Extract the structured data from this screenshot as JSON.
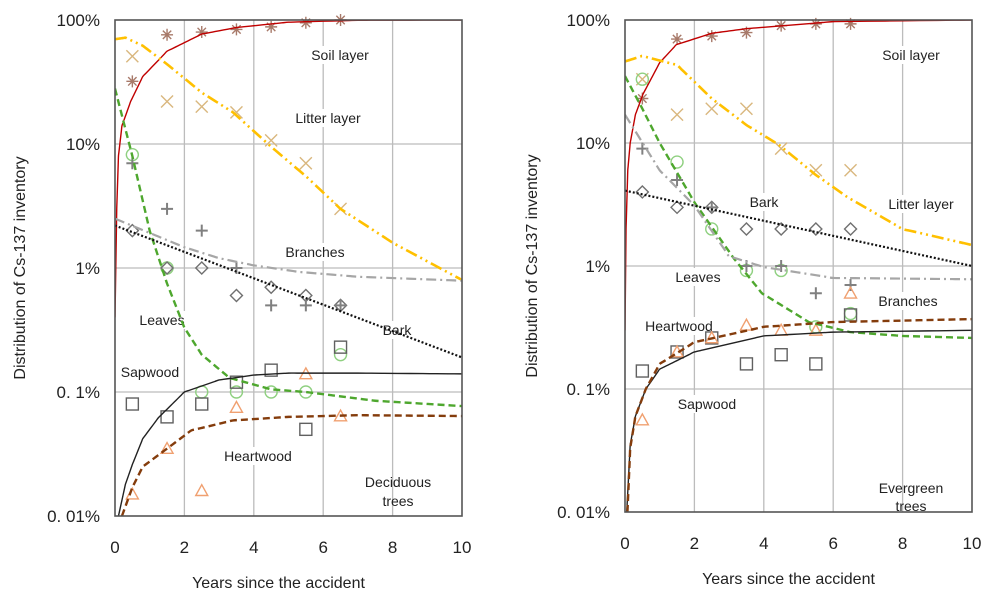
{
  "chart_data": [
    {
      "type": "scatter",
      "panel_label": [
        "Deciduous",
        "trees"
      ],
      "xlabel": "Years since the accident",
      "ylabel": "Distribution of Cs-137 inventory",
      "xlim": [
        0,
        10
      ],
      "ylim": [
        0.01,
        100
      ],
      "yscale": "log",
      "grid": true,
      "x_ticks": [
        "0",
        "2",
        "4",
        "6",
        "8",
        "10"
      ],
      "y_ticks": [
        "100%",
        "10%",
        "1%",
        "0. 1%",
        "0. 01%"
      ],
      "series": [
        {
          "name": "Soil layer",
          "marker": "asterisk",
          "marker_color": "#a87a6a",
          "line_color": "#c00000",
          "line_style": "solid",
          "points": [
            [
              0.5,
              32
            ],
            [
              1.5,
              76
            ],
            [
              2.5,
              80
            ],
            [
              3.5,
              84
            ],
            [
              4.5,
              88
            ],
            [
              5.5,
              95
            ],
            [
              6.5,
              100
            ]
          ],
          "fit": [
            [
              0,
              0.4
            ],
            [
              0.05,
              3
            ],
            [
              0.1,
              8
            ],
            [
              0.2,
              14
            ],
            [
              0.45,
              22
            ],
            [
              0.8,
              35
            ],
            [
              1.5,
              56
            ],
            [
              2.5,
              77
            ],
            [
              3.5,
              87
            ],
            [
              5,
              96
            ],
            [
              7,
              99.5
            ],
            [
              10,
              100
            ]
          ]
        },
        {
          "name": "Litter layer",
          "marker": "x",
          "marker_color": "#d9b77e",
          "line_color": "#ffc000",
          "line_style": "dashdotdot",
          "points": [
            [
              0.5,
              51
            ],
            [
              1.5,
              22
            ],
            [
              2.5,
              20
            ],
            [
              3.5,
              18
            ],
            [
              4.5,
              10.7
            ],
            [
              5.5,
              7
            ],
            [
              6.5,
              3
            ]
          ],
          "fit": [
            [
              0,
              70
            ],
            [
              0.3,
              72
            ],
            [
              0.8,
              62
            ],
            [
              1.5,
              44
            ],
            [
              2.5,
              26
            ],
            [
              3.4,
              18
            ],
            [
              4.5,
              9.5
            ],
            [
              5.5,
              5.5
            ],
            [
              6.5,
              3
            ],
            [
              8,
              1.6
            ],
            [
              10,
              0.8
            ]
          ]
        },
        {
          "name": "Leaves",
          "marker": "circle",
          "marker_color": "#8fd080",
          "line_color": "#4ea72e",
          "line_style": "dashed",
          "points": [
            [
              0.5,
              8.2
            ],
            [
              1.5,
              1
            ],
            [
              2.5,
              0.1
            ],
            [
              3.5,
              0.1
            ],
            [
              4.5,
              0.1
            ],
            [
              5.5,
              0.1
            ],
            [
              6.5,
              0.2
            ]
          ],
          "fit": [
            [
              0,
              28
            ],
            [
              0.5,
              8
            ],
            [
              1,
              2
            ],
            [
              1.5,
              0.75
            ],
            [
              2,
              0.33
            ],
            [
              2.5,
              0.2
            ],
            [
              3.3,
              0.13
            ],
            [
              4.5,
              0.105
            ],
            [
              5.5,
              0.1
            ],
            [
              7.5,
              0.085
            ],
            [
              10,
              0.077
            ]
          ]
        },
        {
          "name": "Bark",
          "marker": "diamond",
          "marker_color": "#707070",
          "line_color": "#111111",
          "line_style": "dotted",
          "points": [
            [
              0.5,
              2
            ],
            [
              1.5,
              1
            ],
            [
              2.5,
              1
            ],
            [
              3.5,
              0.6
            ],
            [
              4.5,
              0.7
            ],
            [
              5.5,
              0.6
            ],
            [
              6.5,
              0.5
            ]
          ],
          "fit": [
            [
              0,
              2.2
            ],
            [
              10,
              0.19
            ]
          ]
        },
        {
          "name": "Branches",
          "marker": "plus",
          "marker_color": "#808080",
          "line_color": "#a6a6a6",
          "line_style": "dashdot",
          "points": [
            [
              0.5,
              7
            ],
            [
              1.5,
              3
            ],
            [
              2.5,
              2
            ],
            [
              3.5,
              1
            ],
            [
              4.5,
              0.5
            ],
            [
              5.5,
              0.5
            ],
            [
              6.5,
              0.5
            ]
          ],
          "fit": [
            [
              0,
              2.5
            ],
            [
              2,
              1.47
            ],
            [
              3,
              1.2
            ],
            [
              4,
              1.05
            ],
            [
              5.3,
              0.93
            ],
            [
              7,
              0.85
            ],
            [
              10,
              0.79
            ]
          ]
        },
        {
          "name": "Sapwood",
          "marker": "square",
          "marker_color": "#606060",
          "line_color": "#222222",
          "line_style": "solid",
          "points": [
            [
              0.5,
              0.08
            ],
            [
              1.5,
              0.063
            ],
            [
              2.5,
              0.08
            ],
            [
              3.5,
              0.12
            ],
            [
              4.5,
              0.15
            ],
            [
              5.5,
              0.05
            ],
            [
              6.5,
              0.23
            ]
          ],
          "fit": [
            [
              0.1,
              0.01
            ],
            [
              0.3,
              0.018
            ],
            [
              0.5,
              0.026
            ],
            [
              0.8,
              0.042
            ],
            [
              1.25,
              0.062
            ],
            [
              2,
              0.1
            ],
            [
              3,
              0.125
            ],
            [
              4,
              0.137
            ],
            [
              5,
              0.142
            ],
            [
              7,
              0.142
            ],
            [
              10,
              0.14
            ]
          ]
        },
        {
          "name": "Heartwood",
          "marker": "triangle",
          "marker_color": "#f0a070",
          "line_color": "#843c0c",
          "line_style": "dashed",
          "points": [
            [
              0.5,
              0.015
            ],
            [
              1.5,
              0.035
            ],
            [
              2.5,
              0.016
            ],
            [
              3.5,
              0.075
            ],
            [
              5.5,
              0.14
            ],
            [
              6.5,
              0.064
            ]
          ],
          "fit": [
            [
              0.2,
              0.01
            ],
            [
              0.5,
              0.017
            ],
            [
              0.8,
              0.025
            ],
            [
              1.25,
              0.031
            ],
            [
              2.2,
              0.049
            ],
            [
              3.4,
              0.059
            ],
            [
              5,
              0.063
            ],
            [
              7,
              0.065
            ],
            [
              10,
              0.064
            ]
          ]
        }
      ]
    },
    {
      "type": "scatter",
      "panel_label": [
        "Evergreen",
        "trees"
      ],
      "xlabel": "Years since the accident",
      "ylabel": "Distribution of Cs-137 inventory",
      "xlim": [
        0,
        10
      ],
      "ylim": [
        0.01,
        100
      ],
      "yscale": "log",
      "grid": true,
      "x_ticks": [
        "0",
        "2",
        "4",
        "6",
        "8",
        "10"
      ],
      "y_ticks": [
        "100%",
        "10%",
        "1%",
        "0. 1%",
        "0. 01%"
      ],
      "series": [
        {
          "name": "Soil layer",
          "marker": "asterisk",
          "marker_color": "#a87a6a",
          "line_color": "#c00000",
          "line_style": "solid",
          "points": [
            [
              0.5,
              23
            ],
            [
              1.5,
              70
            ],
            [
              2.5,
              74
            ],
            [
              3.5,
              79
            ],
            [
              4.5,
              90
            ],
            [
              5.5,
              93
            ],
            [
              6.5,
              93
            ]
          ],
          "fit": [
            [
              0,
              0.3
            ],
            [
              0.03,
              2
            ],
            [
              0.08,
              6
            ],
            [
              0.15,
              10
            ],
            [
              0.3,
              17
            ],
            [
              0.52,
              25
            ],
            [
              1,
              45
            ],
            [
              1.48,
              63
            ],
            [
              2.5,
              78
            ],
            [
              3.5,
              85
            ],
            [
              6,
              97
            ],
            [
              10,
              100
            ]
          ]
        },
        {
          "name": "Litter layer",
          "marker": "x",
          "marker_color": "#d9b77e",
          "line_color": "#ffc000",
          "line_style": "dashdotdot",
          "points": [
            [
              0.5,
              33
            ],
            [
              1.5,
              17
            ],
            [
              2.5,
              19
            ],
            [
              3.5,
              19
            ],
            [
              4.5,
              9
            ],
            [
              5.5,
              6
            ],
            [
              6.5,
              6
            ]
          ],
          "fit": [
            [
              0,
              46
            ],
            [
              0.5,
              51
            ],
            [
              1.5,
              43
            ],
            [
              2.5,
              23
            ],
            [
              3.5,
              14
            ],
            [
              4.43,
              9.7
            ],
            [
              5.5,
              5.5
            ],
            [
              6.43,
              3.6
            ],
            [
              8,
              2
            ],
            [
              10,
              1.48
            ]
          ]
        },
        {
          "name": "Leaves",
          "marker": "circle",
          "marker_color": "#8fd080",
          "line_color": "#4ea72e",
          "line_style": "dashed",
          "points": [
            [
              0.5,
              33
            ],
            [
              1.5,
              7
            ],
            [
              2.5,
              2
            ],
            [
              3.5,
              0.92
            ],
            [
              4.5,
              0.92
            ],
            [
              5.5,
              0.32
            ],
            [
              6.5,
              0.41
            ]
          ],
          "fit": [
            [
              0,
              35
            ],
            [
              0.5,
              19
            ],
            [
              1,
              10
            ],
            [
              2,
              3.3
            ],
            [
              3.14,
              1.15
            ],
            [
              3.95,
              0.6
            ],
            [
              5.3,
              0.35
            ],
            [
              6.5,
              0.29
            ],
            [
              8,
              0.27
            ],
            [
              10,
              0.26
            ]
          ]
        },
        {
          "name": "Bark",
          "marker": "diamond",
          "marker_color": "#707070",
          "line_color": "#111111",
          "line_style": "dotted",
          "points": [
            [
              0.5,
              4
            ],
            [
              1.5,
              3
            ],
            [
              2.5,
              3
            ],
            [
              3.5,
              2
            ],
            [
              4.5,
              2
            ],
            [
              5.5,
              2
            ],
            [
              6.5,
              2
            ]
          ],
          "fit": [
            [
              0,
              4.1
            ],
            [
              10,
              1.0
            ]
          ]
        },
        {
          "name": "Branches",
          "marker": "plus",
          "marker_color": "#808080",
          "line_color": "#a6a6a6",
          "line_style": "dashdot",
          "points": [
            [
              0.5,
              9
            ],
            [
              1.5,
              5
            ],
            [
              2.5,
              3
            ],
            [
              3.5,
              1
            ],
            [
              4.5,
              1
            ],
            [
              5.5,
              0.6
            ],
            [
              6.5,
              0.7
            ]
          ],
          "fit": [
            [
              0,
              17
            ],
            [
              1,
              6
            ],
            [
              2,
              3.1
            ],
            [
              3,
              1.2
            ],
            [
              4,
              0.98
            ],
            [
              6,
              0.8
            ],
            [
              10,
              0.78
            ]
          ]
        },
        {
          "name": "Sapwood",
          "marker": "square",
          "marker_color": "#606060",
          "line_color": "#222222",
          "line_style": "solid",
          "points": [
            [
              0.5,
              0.14
            ],
            [
              1.5,
              0.2
            ],
            [
              2.5,
              0.26
            ],
            [
              3.5,
              0.16
            ],
            [
              4.5,
              0.19
            ],
            [
              5.5,
              0.16
            ],
            [
              6.5,
              0.4
            ]
          ],
          "fit": [
            [
              0.05,
              0.01
            ],
            [
              0.15,
              0.035
            ],
            [
              0.3,
              0.06
            ],
            [
              0.6,
              0.1
            ],
            [
              1,
              0.145
            ],
            [
              2,
              0.2
            ],
            [
              4,
              0.27
            ],
            [
              6,
              0.29
            ],
            [
              10,
              0.3
            ]
          ]
        },
        {
          "name": "Heartwood",
          "marker": "triangle",
          "marker_color": "#f0a070",
          "line_color": "#843c0c",
          "line_style": "dashed",
          "points": [
            [
              0.5,
              0.056
            ],
            [
              1.5,
              0.2
            ],
            [
              2.5,
              0.26
            ],
            [
              3.5,
              0.33
            ],
            [
              4.5,
              0.3
            ],
            [
              5.5,
              0.3
            ],
            [
              6.5,
              0.6
            ]
          ],
          "fit": [
            [
              0.07,
              0.01
            ],
            [
              0.15,
              0.033
            ],
            [
              0.3,
              0.06
            ],
            [
              0.6,
              0.1
            ],
            [
              1,
              0.16
            ],
            [
              2,
              0.24
            ],
            [
              4,
              0.32
            ],
            [
              6,
              0.35
            ],
            [
              10,
              0.37
            ]
          ]
        }
      ]
    }
  ]
}
